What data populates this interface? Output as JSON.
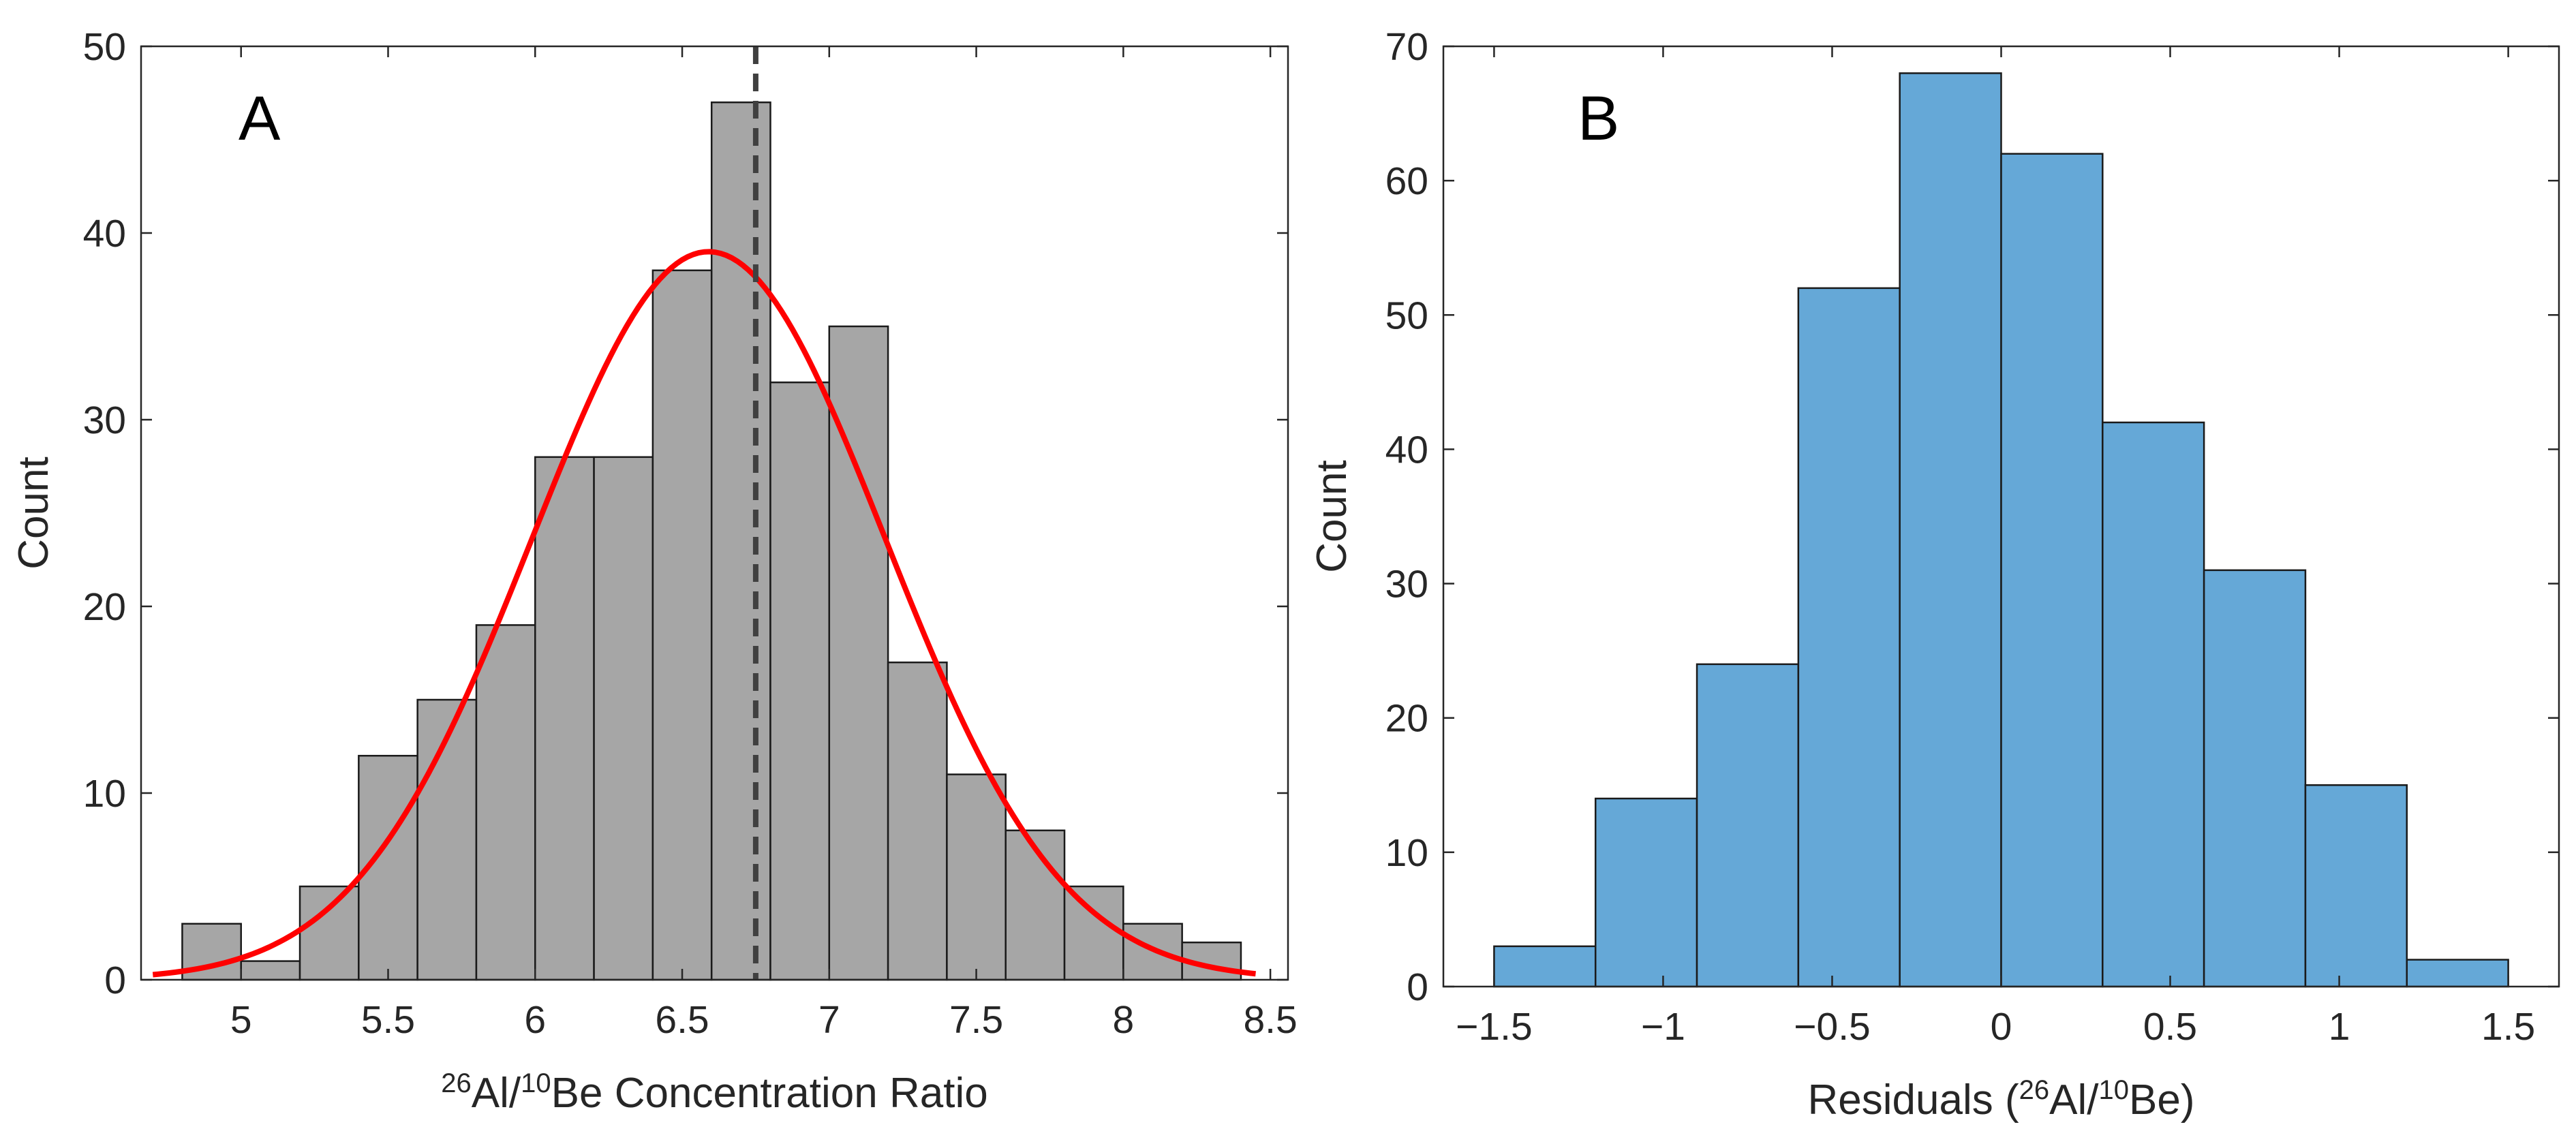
{
  "chart_data": [
    {
      "panel_label": "A",
      "type": "bar",
      "xlabel": {
        "pre": "",
        "sup1": "26",
        "mid": "Al/",
        "sup2": "10",
        "post": "Be Concentration Ratio"
      },
      "ylabel": "Count",
      "xlim": [
        4.66,
        8.56
      ],
      "ylim": [
        0,
        50
      ],
      "xticks": [
        5,
        5.5,
        6,
        6.5,
        7,
        7.5,
        8,
        8.5
      ],
      "yticks": [
        0,
        10,
        20,
        30,
        40,
        50
      ],
      "bin_edges": [
        4.8,
        5.0,
        5.2,
        5.4,
        5.6,
        5.8,
        6.0,
        6.2,
        6.4,
        6.6,
        6.8,
        7.0,
        7.2,
        7.4,
        7.6,
        7.8,
        8.0,
        8.2,
        8.4
      ],
      "counts": [
        3,
        1,
        5,
        12,
        15,
        19,
        28,
        28,
        38,
        47,
        32,
        35,
        17,
        11,
        8,
        5,
        3,
        2
      ],
      "bar_color": "#a6a6a6",
      "fit_curve": {
        "type": "normal",
        "mean": 6.59,
        "sd": 0.6,
        "peak": 39,
        "x_range": [
          4.7,
          8.45
        ],
        "color": "#ff0000"
      },
      "vline": {
        "x": 6.75,
        "style": "dashed",
        "color": "#404040"
      }
    },
    {
      "panel_label": "B",
      "type": "bar",
      "xlabel": {
        "pre": "Residuals (",
        "sup1": "26",
        "mid": "Al/",
        "sup2": "10",
        "post": "Be)"
      },
      "ylabel": "Count",
      "xlim": [
        -1.65,
        1.65
      ],
      "ylim": [
        0,
        70
      ],
      "xticks": [
        -1.5,
        -1,
        -0.5,
        0,
        0.5,
        1,
        1.5
      ],
      "xtick_labels": [
        "−1.5",
        "−1",
        "−0.5",
        "0",
        "0.5",
        "1",
        "1.5"
      ],
      "yticks": [
        0,
        10,
        20,
        30,
        40,
        50,
        60,
        70
      ],
      "bin_edges": [
        -1.5,
        -1.2,
        -0.9,
        -0.6,
        -0.3,
        0,
        0.3,
        0.6,
        0.9,
        1.2,
        1.5
      ],
      "counts": [
        3,
        14,
        24,
        52,
        68,
        62,
        42,
        31,
        15,
        2
      ],
      "bar_color": "#65a8d7"
    }
  ]
}
